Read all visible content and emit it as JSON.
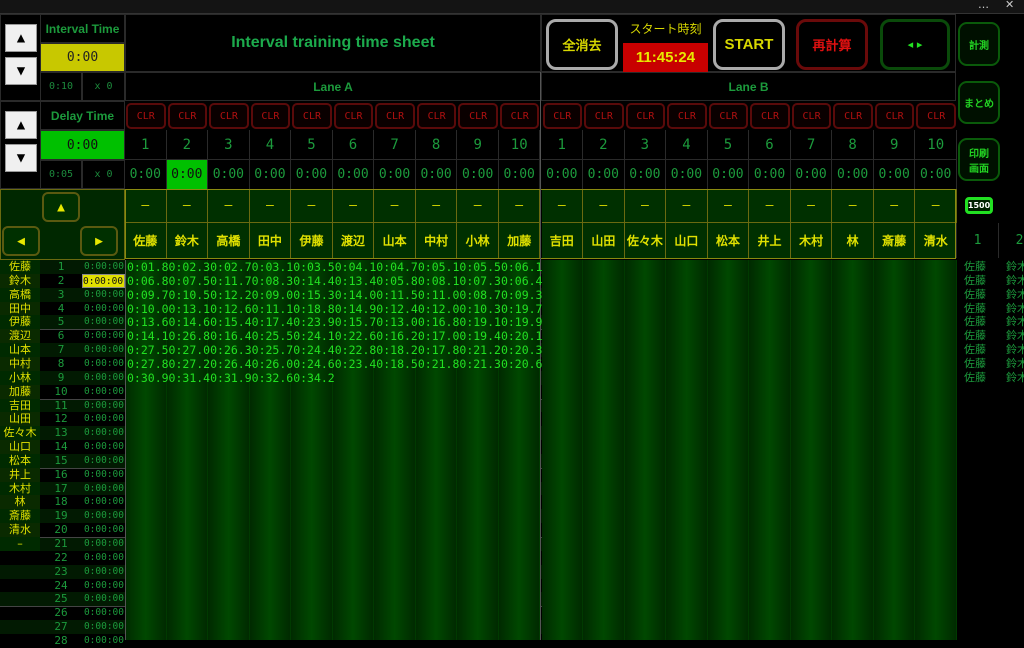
{
  "window": {
    "menu_icon": "…",
    "close_icon": "✕"
  },
  "title": "Interval training time sheet",
  "interval": {
    "label": "Interval Time",
    "value": "0:00",
    "step": "0:10",
    "mult": "x 0"
  },
  "delay": {
    "label": "Delay Time",
    "value": "0:00",
    "step": "0:05",
    "mult": "x 0"
  },
  "header_buttons": {
    "clear_all": "全消去",
    "start_time_label": "スタート時刻",
    "start_time": "11:45:24",
    "start": "START",
    "recalc": "再計算",
    "page": "◂ ▸"
  },
  "side_buttons": {
    "measure": "計測",
    "summary": "まとめ",
    "print": "印刷\n画面",
    "distance": "1500"
  },
  "side_columns": [
    "1",
    "2"
  ],
  "lanes": [
    {
      "label": "Lane A",
      "names": [
        "佐藤",
        "鈴木",
        "高橋",
        "田中",
        "伊藤",
        "渡辺",
        "山本",
        "中村",
        "小林",
        "加藤"
      ]
    },
    {
      "label": "Lane B",
      "names": [
        "吉田",
        "山田",
        "佐々木",
        "山口",
        "松本",
        "井上",
        "木村",
        "林",
        "斎藤",
        "清水"
      ]
    }
  ],
  "clr_label": "CLR",
  "lane_numbers": [
    "1",
    "2",
    "3",
    "4",
    "5",
    "6",
    "7",
    "8",
    "9",
    "10"
  ],
  "lane_time": "0:00",
  "selected_lane_col": 1,
  "dash": "–",
  "nav": {
    "up": "▲",
    "left": "◀",
    "right": "▶"
  },
  "rows": {
    "names": [
      "佐藤",
      "鈴木",
      "高橋",
      "田中",
      "伊藤",
      "渡辺",
      "山本",
      "中村",
      "小林",
      "加藤",
      "吉田",
      "山田",
      "佐々木",
      "山口",
      "松本",
      "井上",
      "木村",
      "林",
      "斎藤",
      "清水",
      "–"
    ],
    "time": "0:00:00",
    "count": 28,
    "selected_row": 1
  },
  "laps": [
    [
      "0:01.8",
      "0:02.3",
      "0:02.7",
      "0:03.1",
      "0:03.5",
      "0:04.1",
      "0:04.7",
      "0:05.1",
      "0:05.5",
      "0:06.1"
    ],
    [
      "0:06.8",
      "0:07.5",
      "0:11.7",
      "0:08.3",
      "0:14.4",
      "0:13.4",
      "0:05.8",
      "0:08.1",
      "0:07.3",
      "0:06.4"
    ],
    [
      "0:09.7",
      "0:10.5",
      "0:12.2",
      "0:09.0",
      "0:15.3",
      "0:14.0",
      "0:11.5",
      "0:11.0",
      "0:08.7",
      "0:09.3"
    ],
    [
      "0:10.0",
      "0:13.1",
      "0:12.6",
      "0:11.1",
      "0:18.8",
      "0:14.9",
      "0:12.4",
      "0:12.0",
      "0:10.3",
      "0:19.7"
    ],
    [
      "0:13.6",
      "0:14.6",
      "0:15.4",
      "0:17.4",
      "0:23.9",
      "0:15.7",
      "0:13.0",
      "0:16.8",
      "0:19.1",
      "0:19.9"
    ],
    [
      "0:14.1",
      "0:26.8",
      "0:16.4",
      "0:25.5",
      "0:24.1",
      "0:22.6",
      "0:16.2",
      "0:17.0",
      "0:19.4",
      "0:20.1"
    ],
    [
      "0:27.5",
      "0:27.0",
      "0:26.3",
      "0:25.7",
      "0:24.4",
      "0:22.8",
      "0:18.2",
      "0:17.8",
      "0:21.2",
      "0:20.3"
    ],
    [
      "0:27.8",
      "0:27.2",
      "0:26.4",
      "0:26.0",
      "0:24.6",
      "0:23.4",
      "0:18.5",
      "0:21.8",
      "0:21.3",
      "0:20.6"
    ],
    [
      "0:30.9",
      "0:31.4",
      "0:31.9",
      "0:32.6",
      "0:34.2"
    ]
  ],
  "side_names": [
    "佐藤",
    "鈴木"
  ],
  "side_name_rows": 9
}
